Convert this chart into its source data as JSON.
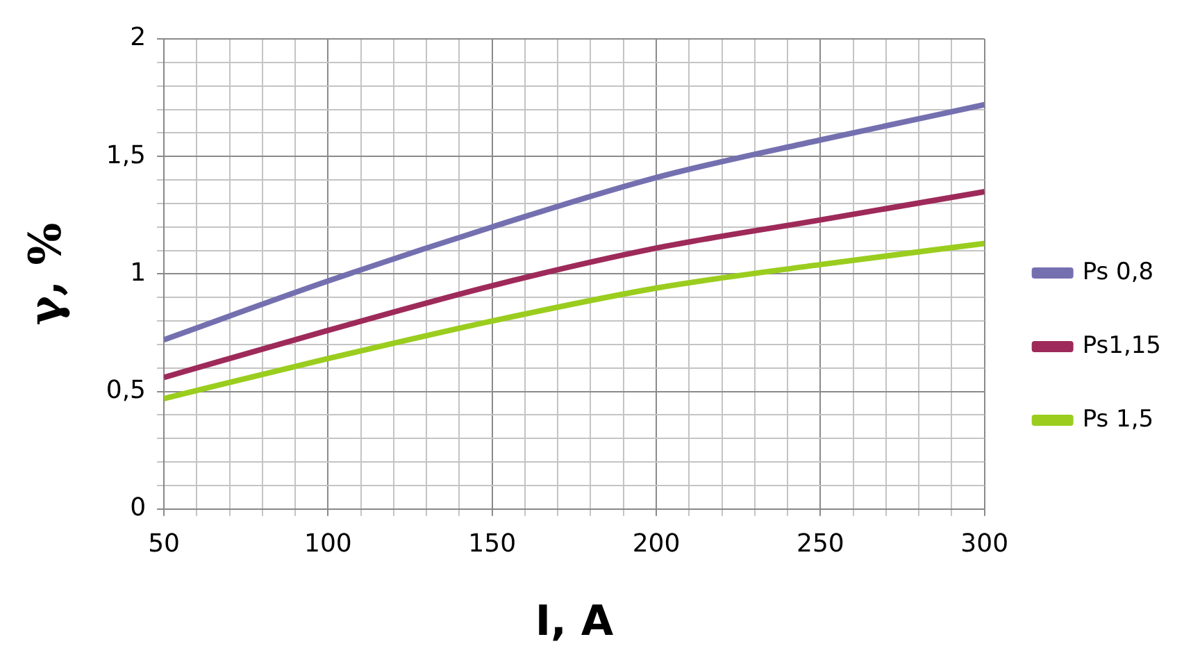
{
  "chart_data": {
    "type": "line",
    "xlabel": "I, A",
    "ylabel": "γ, %",
    "x": [
      50,
      100,
      150,
      200,
      250,
      300
    ],
    "series": [
      {
        "name": "Ps 0,8",
        "color": "#7470b0",
        "values": [
          0.72,
          0.97,
          1.2,
          1.41,
          1.57,
          1.72
        ]
      },
      {
        "name": "Ps1,15",
        "color": "#9e2a5a",
        "values": [
          0.56,
          0.76,
          0.95,
          1.11,
          1.23,
          1.35
        ]
      },
      {
        "name": "Ps 1,5",
        "color": "#9acd1e",
        "values": [
          0.47,
          0.64,
          0.8,
          0.94,
          1.04,
          1.13
        ]
      }
    ],
    "xlim": [
      50,
      300
    ],
    "xticks": [
      50,
      {
        "value": 60,
        "label": null
      },
      {
        "value": 70,
        "label": null
      },
      {
        "value": 80,
        "label": null
      },
      {
        "value": 90,
        "label": null
      },
      100,
      {
        "value": 110,
        "label": null
      },
      {
        "value": 120,
        "label": null
      },
      {
        "value": 130,
        "label": null
      },
      {
        "value": 140,
        "label": null
      },
      150,
      {
        "value": 160,
        "label": null
      },
      {
        "value": 170,
        "label": null
      },
      {
        "value": 180,
        "label": null
      },
      {
        "value": 190,
        "label": null
      },
      200,
      {
        "value": 210,
        "label": null
      },
      {
        "value": 220,
        "label": null
      },
      {
        "value": 230,
        "label": null
      },
      {
        "value": 240,
        "label": null
      },
      250,
      {
        "value": 260,
        "label": null
      },
      {
        "value": 270,
        "label": null
      },
      {
        "value": 280,
        "label": null
      },
      {
        "value": 290,
        "label": null
      },
      300
    ],
    "ylim": [
      0,
      2
    ],
    "yticks": [
      0,
      {
        "value": 0.1,
        "label": null
      },
      {
        "value": 0.2,
        "label": null
      },
      {
        "value": 0.3,
        "label": null
      },
      {
        "value": 0.4,
        "label": null
      },
      {
        "value": 0.5,
        "label": "0,5"
      },
      {
        "value": 0.6,
        "label": null
      },
      {
        "value": 0.7,
        "label": null
      },
      {
        "value": 0.8,
        "label": null
      },
      {
        "value": 0.9,
        "label": null
      },
      1,
      {
        "value": 1.1,
        "label": null
      },
      {
        "value": 1.2,
        "label": null
      },
      {
        "value": 1.3,
        "label": null
      },
      {
        "value": 1.4,
        "label": null
      },
      {
        "value": 1.5,
        "label": "1,5"
      },
      {
        "value": 1.6,
        "label": null
      },
      {
        "value": 1.7,
        "label": null
      },
      {
        "value": 1.8,
        "label": null
      },
      {
        "value": 1.9,
        "label": null
      },
      2
    ],
    "grid": true,
    "legend": "right",
    "marker": "none",
    "line_style": "solid"
  }
}
